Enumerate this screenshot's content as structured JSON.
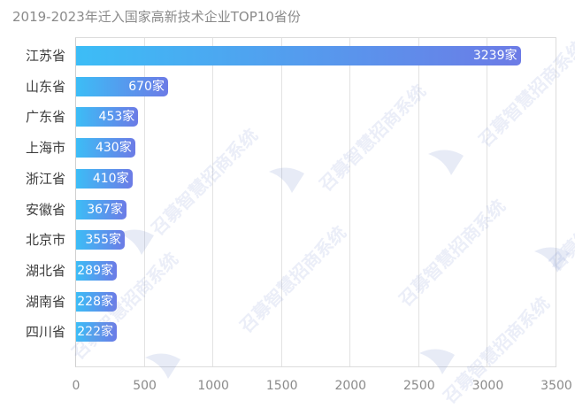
{
  "title": "2019-2023年迁入国家高新技术企业TOP10省份",
  "colors": {
    "bar_gradient_start": "#3cbdf6",
    "bar_gradient_end": "#6c7be6",
    "grid": "#e2e2e2",
    "label_text": "#3c3c3c",
    "axis_text": "#8a8a8a"
  },
  "watermark": "召募智慧招商系统",
  "chart_data": {
    "type": "bar",
    "orientation": "horizontal",
    "title": "2019-2023年迁入国家高新技术企业TOP10省份",
    "xlabel": "",
    "ylabel": "",
    "xlim": [
      0,
      3500
    ],
    "grid": true,
    "legend": null,
    "value_suffix": "家",
    "categories": [
      "江苏省",
      "山东省",
      "广东省",
      "上海市",
      "浙江省",
      "安徽省",
      "北京市",
      "湖北省",
      "湖南省",
      "四川省"
    ],
    "values": [
      3239,
      670,
      453,
      430,
      410,
      367,
      355,
      289,
      228,
      222
    ],
    "data_labels": [
      "3239家",
      "670家",
      "453家",
      "430家",
      "410家",
      "367家",
      "355家",
      "289家",
      "228家",
      "222家"
    ],
    "x_ticks": [
      "0",
      "500",
      "1000",
      "1500",
      "2000",
      "2500",
      "3000",
      "3500"
    ]
  }
}
